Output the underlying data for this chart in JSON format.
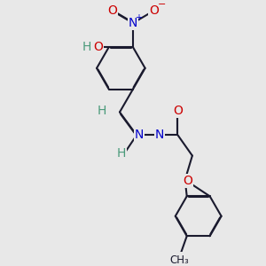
{
  "bg_color": "#e8e8e8",
  "bond_color": "#1a1a2e",
  "bond_width": 1.5,
  "dbo": 0.018,
  "atom_colors": {
    "H": "#4a9a7a",
    "N": "#0000cc",
    "O": "#cc0000"
  },
  "font_size": 10,
  "font_size_small": 8.5
}
